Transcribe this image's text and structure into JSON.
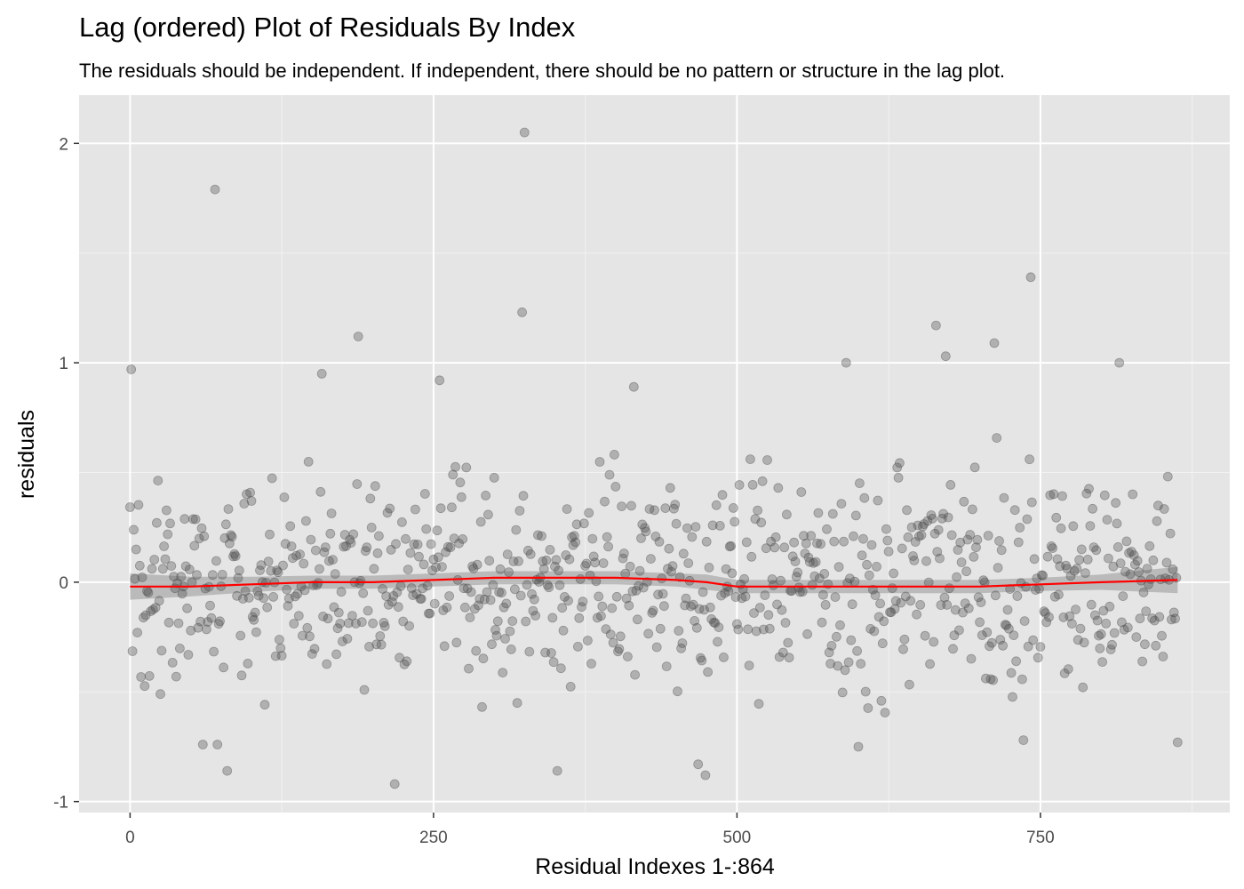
{
  "chart_data": {
    "type": "scatter",
    "title": "Lag (ordered) Plot of Residuals By Index",
    "subtitle": "The residuals should be independent. If independent, there should be no pattern or structure in the lag plot.",
    "xlabel": "Residual Indexes 1-:864",
    "ylabel": "residuals",
    "xlim": [
      -42,
      906
    ],
    "ylim": [
      -1.05,
      2.22
    ],
    "x_ticks": [
      0,
      250,
      500,
      750
    ],
    "x_tick_labels": [
      "0",
      "250",
      "500",
      "750"
    ],
    "y_ticks": [
      -1,
      0,
      1,
      2
    ],
    "y_tick_labels": [
      "-1",
      "0",
      "1",
      "2"
    ],
    "grid": true,
    "n_points": 864,
    "point_color": "#4d4d4d",
    "point_alpha": 0.35,
    "smooth_color": "#ff0000",
    "ribbon_color": "#b3b3b3",
    "panel_background": "#e5e5e5",
    "highlighted_points": [
      {
        "x": 1,
        "y": 0.97
      },
      {
        "x": 6,
        "y": -0.23
      },
      {
        "x": 70,
        "y": 1.79
      },
      {
        "x": 80,
        "y": -0.86
      },
      {
        "x": 158,
        "y": 0.95
      },
      {
        "x": 188,
        "y": 1.12
      },
      {
        "x": 218,
        "y": -0.92
      },
      {
        "x": 255,
        "y": 0.92
      },
      {
        "x": 323,
        "y": 1.23
      },
      {
        "x": 325,
        "y": 2.05
      },
      {
        "x": 352,
        "y": -0.86
      },
      {
        "x": 415,
        "y": 0.89
      },
      {
        "x": 468,
        "y": -0.83
      },
      {
        "x": 474,
        "y": -0.88
      },
      {
        "x": 590,
        "y": 1.0
      },
      {
        "x": 664,
        "y": 1.17
      },
      {
        "x": 672,
        "y": 1.03
      },
      {
        "x": 712,
        "y": 1.09
      },
      {
        "x": 742,
        "y": 1.39
      },
      {
        "x": 815,
        "y": 1.0
      },
      {
        "x": 863,
        "y": -0.73
      },
      {
        "x": 60,
        "y": -0.74
      },
      {
        "x": 72,
        "y": -0.74
      },
      {
        "x": 600,
        "y": -0.75
      },
      {
        "x": 736,
        "y": -0.72
      }
    ],
    "smooth": {
      "x": [
        0,
        50,
        100,
        150,
        200,
        250,
        300,
        350,
        400,
        450,
        475,
        500,
        550,
        600,
        650,
        700,
        750,
        800,
        863
      ],
      "y": [
        -0.02,
        -0.02,
        -0.01,
        0.0,
        0.0,
        0.01,
        0.02,
        0.02,
        0.02,
        0.01,
        0.0,
        -0.02,
        -0.02,
        -0.02,
        -0.02,
        -0.02,
        -0.01,
        0.0,
        0.01
      ],
      "band": [
        0.06,
        0.045,
        0.035,
        0.03,
        0.03,
        0.03,
        0.03,
        0.03,
        0.03,
        0.03,
        0.035,
        0.03,
        0.03,
        0.03,
        0.03,
        0.03,
        0.03,
        0.035,
        0.06
      ]
    }
  }
}
